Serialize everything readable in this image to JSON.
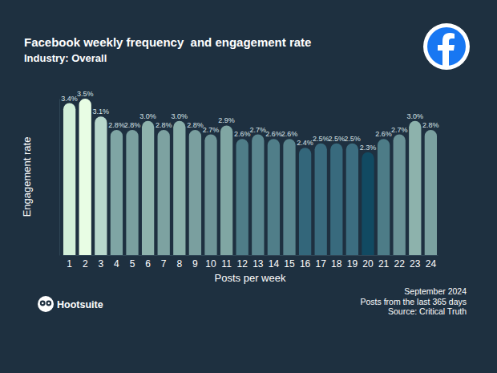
{
  "chart_data": {
    "type": "bar",
    "title": "Facebook weekly frequency  and engagement rate",
    "subtitle": "Industry: Overall",
    "x_label": "Posts per week",
    "y_label": "Engagement rate",
    "categories": [
      "1",
      "2",
      "3",
      "4",
      "5",
      "6",
      "7",
      "8",
      "9",
      "10",
      "11",
      "12",
      "13",
      "14",
      "15",
      "16",
      "17",
      "18",
      "19",
      "20",
      "21",
      "22",
      "23",
      "24"
    ],
    "values": [
      3.4,
      3.5,
      3.1,
      2.8,
      2.8,
      3.0,
      2.8,
      3.0,
      2.8,
      2.7,
      2.9,
      2.6,
      2.7,
      2.6,
      2.6,
      2.4,
      2.5,
      2.5,
      2.5,
      2.3,
      2.6,
      2.7,
      3.0,
      2.8
    ],
    "value_labels": [
      "3.4%",
      "3.5%",
      "3.1%",
      "2.8%",
      "2.8%",
      "3.0%",
      "2.8%",
      "3.0%",
      "2.8%",
      "2.7%",
      "2.9%",
      "2.6%",
      "2.7%",
      "2.6%",
      "2.6%",
      "2.4%",
      "2.5%",
      "2.5%",
      "2.5%",
      "2.3%",
      "2.6%",
      "2.7%",
      "3.0%",
      "2.8%"
    ],
    "colors": [
      "#d2efd9",
      "#e8fde4",
      "#b7d7cc",
      "#7fa5a4",
      "#7a9f9f",
      "#8eb3ad",
      "#7da2a1",
      "#8ab0ab",
      "#7a9f9f",
      "#6f9598",
      "#80a6a3",
      "#4f7d88",
      "#5b8790",
      "#507e89",
      "#5a868f",
      "#33667a",
      "#3a6b7e",
      "#386a7d",
      "#3c6d80",
      "#114a62",
      "#4d7c87",
      "#6a9296",
      "#8db2ac",
      "#7ba1a0"
    ],
    "ylim": [
      0,
      3.5
    ],
    "yticks": [],
    "data_labels": true,
    "tick_labels": "x",
    "annotations": [
      "September 2024",
      "Posts from the last 365 days",
      "Source: Critical Truth"
    ],
    "logo_text": "Hootsuite"
  }
}
